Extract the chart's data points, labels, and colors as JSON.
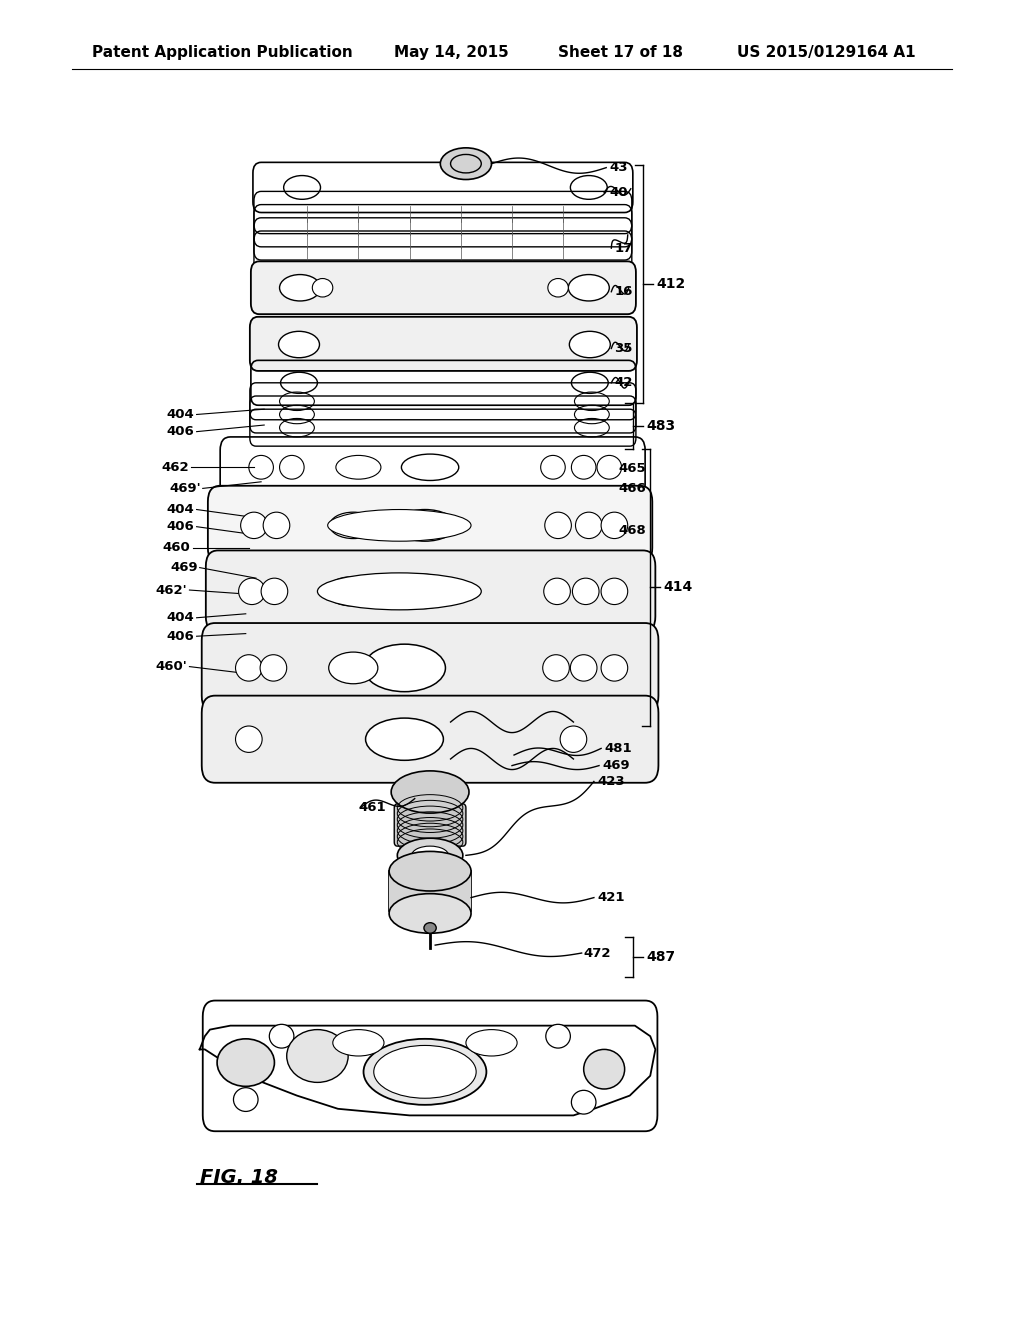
{
  "title": "Patent Application Publication",
  "date": "May 14, 2015",
  "sheet": "Sheet 17 of 18",
  "patent_num": "US 2015/0129164 A1",
  "fig_label": "FIG. 18",
  "header_fontsize": 11,
  "fig_fontsize": 14,
  "label_fontsize": 10,
  "bg_color": "#ffffff",
  "text_color": "#000000"
}
